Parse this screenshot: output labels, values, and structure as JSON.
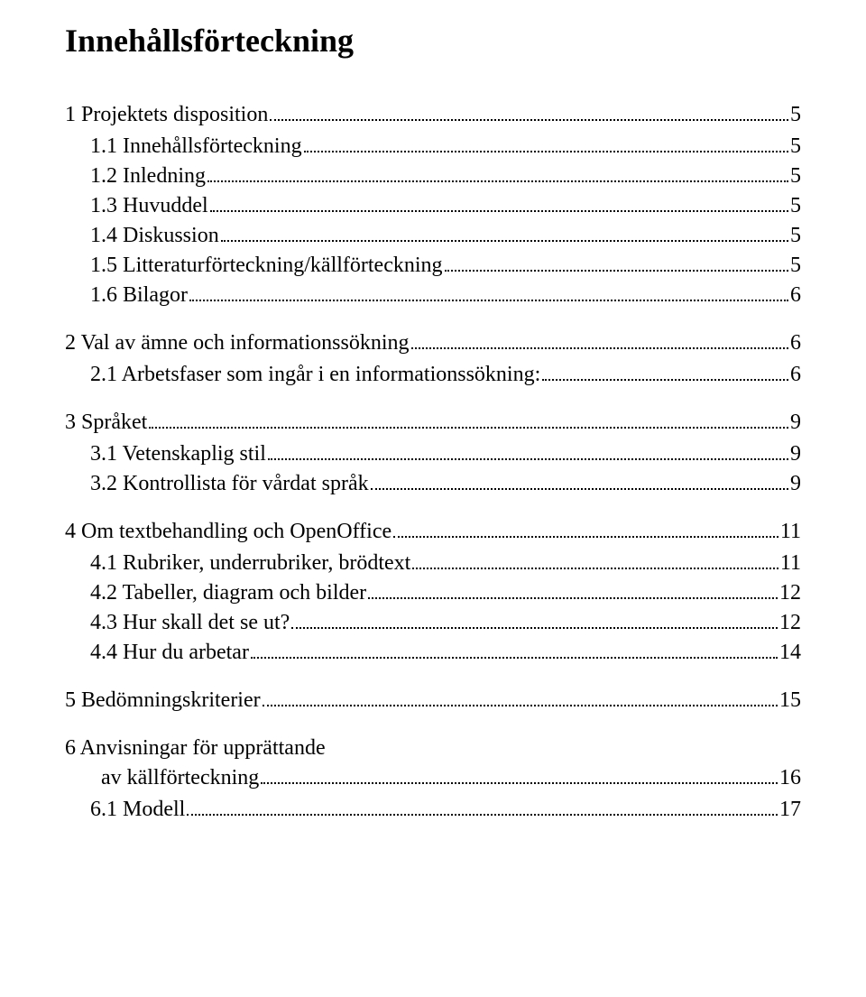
{
  "title": "Innehållsförteckning",
  "entries": [
    {
      "level": 1,
      "label": "1 Projektets disposition",
      "page": "5"
    },
    {
      "level": 2,
      "label": "1.1 Innehållsförteckning",
      "page": "5"
    },
    {
      "level": 2,
      "label": "1.2 Inledning",
      "page": "5"
    },
    {
      "level": 2,
      "label": "1.3 Huvuddel",
      "page": "5"
    },
    {
      "level": 2,
      "label": "1.4 Diskussion",
      "page": "5"
    },
    {
      "level": 2,
      "label": "1.5 Litteraturförteckning/källförteckning",
      "page": "5"
    },
    {
      "level": 2,
      "label": "1.6 Bilagor",
      "page": "6"
    },
    {
      "level": 1,
      "label": "2 Val av ämne och informationssökning",
      "page": "6"
    },
    {
      "level": 2,
      "label": "2.1 Arbetsfaser som ingår i en informationssökning:",
      "page": "6"
    },
    {
      "level": 1,
      "label": "3 Språket",
      "page": "9"
    },
    {
      "level": 2,
      "label": "3.1 Vetenskaplig stil",
      "page": "9"
    },
    {
      "level": 2,
      "label": "3.2 Kontrollista för vårdat språk",
      "page": "9"
    },
    {
      "level": 1,
      "label": "4 Om textbehandling och OpenOffice",
      "page": "11"
    },
    {
      "level": 2,
      "label": "4.1 Rubriker, underrubriker, brödtext",
      "page": "11"
    },
    {
      "level": 2,
      "label": "4.2 Tabeller, diagram och bilder",
      "page": "12"
    },
    {
      "level": 2,
      "label": "4.3 Hur skall det se ut?",
      "page": "12"
    },
    {
      "level": 2,
      "label": "4.4 Hur du arbetar",
      "page": "14"
    },
    {
      "level": 1,
      "label": "5 Bedömningskriterier",
      "page": "15"
    },
    {
      "level": 1,
      "label": "6 Anvisningar för upprättande",
      "continuation": " av källförteckning ",
      "page": "16"
    },
    {
      "level": 2,
      "label": "6.1 Modell",
      "page": "17"
    }
  ]
}
